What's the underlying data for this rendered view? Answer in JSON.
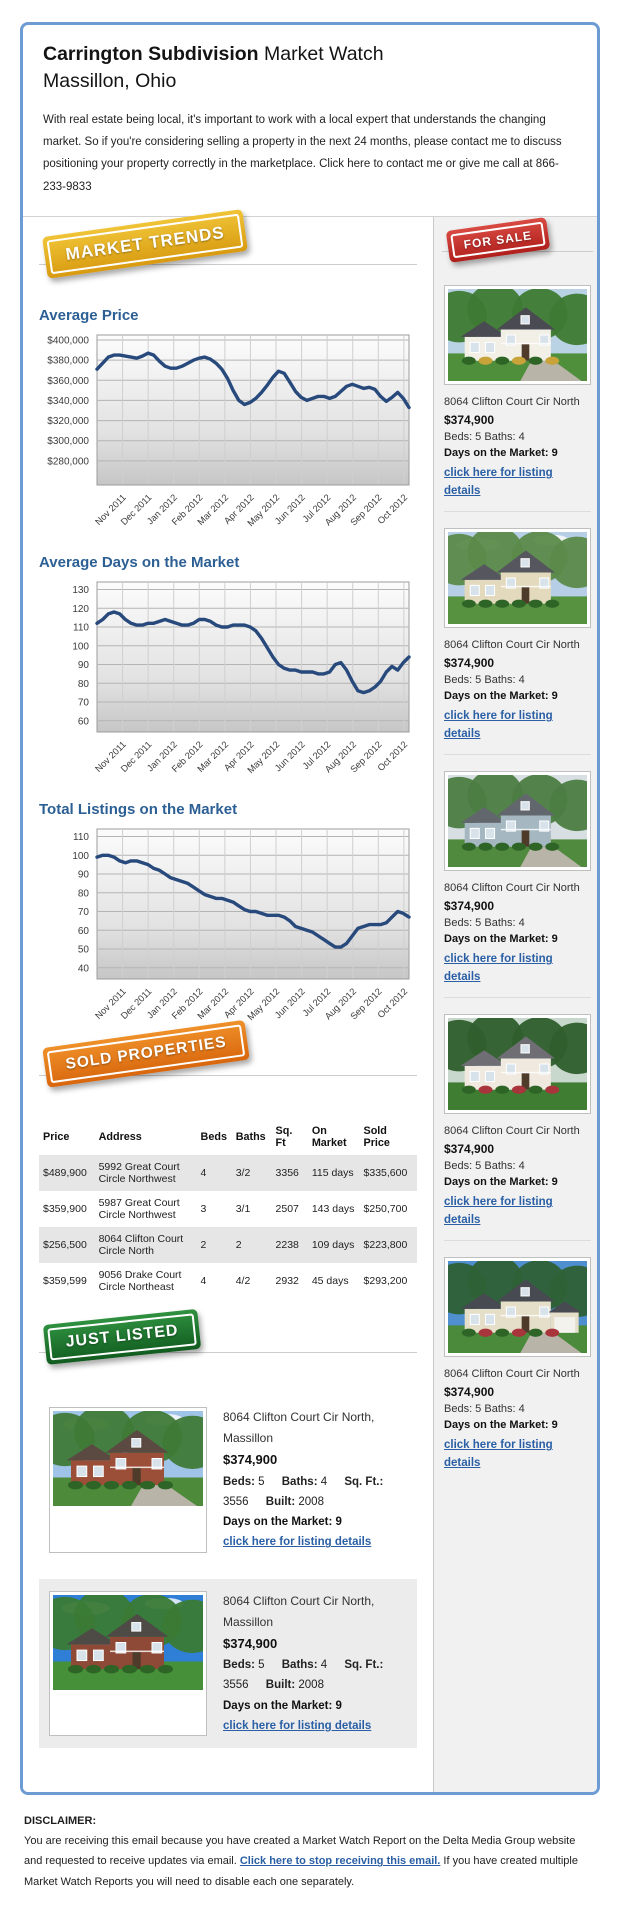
{
  "header": {
    "title_bold": "Carrington Subdivision",
    "title_rest": " Market Watch",
    "subtitle": "Massillon, Ohio",
    "intro": "With real estate being local, it's important to work with a local expert that understands the changing market. So if you're considering selling a property in the next 24 months, please contact me to discuss positioning your property correctly in the marketplace. Click here to contact me or give me call at 866-233-9833"
  },
  "badges": {
    "market_trends": "MARKET TRENDS",
    "for_sale": "FOR SALE",
    "sold_properties": "SOLD PROPERTIES",
    "just_listed": "JUST LISTED"
  },
  "colors": {
    "frame_blue": "#6d9bd3",
    "heading_blue": "#2c5f94",
    "link_blue": "#2a5fa5",
    "chart_line": "#27497b",
    "badge_gold": "#d89a10",
    "badge_red": "#b01f1c",
    "badge_orange": "#d8660d",
    "badge_green": "#115c1f",
    "sidebar_bg": "#f1f1f1",
    "table_alt_row": "#e6e6e6"
  },
  "chart_data": [
    {
      "type": "line",
      "title": "Average Price",
      "x_labels": [
        "Nov 2011",
        "Dec 2011",
        "Jan 2012",
        "Feb 2012",
        "Mar 2012",
        "Apr 2012",
        "May 2012",
        "Jun 2012",
        "Jul 2012",
        "Aug 2012",
        "Sep 2012",
        "Oct 2012"
      ],
      "values": [
        371000,
        377000,
        383000,
        385000,
        385000,
        384000,
        383000,
        382000,
        384000,
        387000,
        385000,
        379000,
        374000,
        372000,
        372000,
        374000,
        377000,
        380000,
        382000,
        383000,
        381000,
        377000,
        371000,
        362000,
        350000,
        340000,
        336000,
        338000,
        342000,
        348000,
        355000,
        363000,
        369000,
        367000,
        358000,
        349000,
        343000,
        340000,
        342000,
        344000,
        344000,
        342000,
        344000,
        349000,
        354000,
        356000,
        354000,
        352000,
        353000,
        351000,
        344000,
        339000,
        343000,
        348000,
        342000,
        333000
      ],
      "ytick_values": [
        400000,
        380000,
        360000,
        340000,
        320000,
        300000,
        280000
      ],
      "ytick_labels": [
        "$400,000",
        "$380,000",
        "$360,000",
        "$340,000",
        "$320,000",
        "$300,000",
        "$280,000"
      ],
      "ylim": [
        256000,
        405000
      ],
      "grid": true,
      "line_color": "#27497b"
    },
    {
      "type": "line",
      "title": "Average Days on the Market",
      "x_labels": [
        "Nov 2011",
        "Dec 2011",
        "Jan 2012",
        "Feb 2012",
        "Mar 2012",
        "Apr 2012",
        "May 2012",
        "Jun 2012",
        "Jul 2012",
        "Aug 2012",
        "Sep 2012",
        "Oct 2012"
      ],
      "values": [
        112,
        114,
        117,
        118,
        117,
        114,
        112,
        111,
        111,
        112,
        112,
        113,
        114,
        113,
        112,
        111,
        111,
        112,
        114,
        114,
        113,
        111,
        110,
        110,
        111,
        111,
        111,
        110,
        108,
        104,
        99,
        94,
        90,
        88,
        87,
        87,
        86,
        86,
        86,
        85,
        85,
        86,
        90,
        91,
        87,
        81,
        76,
        75,
        76,
        78,
        81,
        86,
        89,
        87,
        91,
        94
      ],
      "ytick_values": [
        130,
        120,
        110,
        100,
        90,
        80,
        70,
        60
      ],
      "ytick_labels": [
        "130",
        "120",
        "110",
        "100",
        "90",
        "80",
        "70",
        "60"
      ],
      "ylim": [
        54,
        134
      ],
      "grid": true,
      "line_color": "#27497b"
    },
    {
      "type": "line",
      "title": "Total Listings on the Market",
      "x_labels": [
        "Nov 2011",
        "Dec 2011",
        "Jan 2012",
        "Feb 2012",
        "Mar 2012",
        "Apr 2012",
        "May 2012",
        "Jun 2012",
        "Jul 2012",
        "Aug 2012",
        "Sep 2012",
        "Oct 2012"
      ],
      "values": [
        99,
        100,
        100,
        99,
        97,
        96,
        97,
        97,
        96,
        95,
        93,
        92,
        90,
        88,
        87,
        86,
        85,
        83,
        81,
        79,
        78,
        77,
        77,
        76,
        75,
        73,
        71,
        70,
        70,
        69,
        68,
        68,
        68,
        67,
        65,
        62,
        61,
        60,
        59,
        57,
        55,
        53,
        51,
        51,
        53,
        57,
        61,
        62,
        63,
        63,
        63,
        64,
        67,
        70,
        69,
        67
      ],
      "ytick_values": [
        110,
        100,
        90,
        80,
        70,
        60,
        50,
        40
      ],
      "ytick_labels": [
        "110",
        "100",
        "90",
        "80",
        "70",
        "60",
        "50",
        "40"
      ],
      "ylim": [
        34,
        114
      ],
      "grid": true,
      "line_color": "#27497b"
    }
  ],
  "for_sale": {
    "listings": [
      {
        "address": "8064 Clifton Court Cir North",
        "price": "$374,900",
        "beds_baths": "Beds: 5 Baths: 4",
        "days": "Days on the Market: 9",
        "link": "click here for listing details"
      },
      {
        "address": "8064 Clifton Court Cir North",
        "price": "$374,900",
        "beds_baths": "Beds: 5 Baths: 4",
        "days": "Days on the Market: 9",
        "link": "click here for listing details"
      },
      {
        "address": "8064 Clifton Court Cir North",
        "price": "$374,900",
        "beds_baths": "Beds: 5 Baths: 4",
        "days": "Days on the Market: 9",
        "link": "click here for listing details"
      },
      {
        "address": "8064 Clifton Court Cir North",
        "price": "$374,900",
        "beds_baths": "Beds: 5 Baths: 4",
        "days": "Days on the Market: 9",
        "link": "click here for listing details"
      },
      {
        "address": "8064 Clifton Court Cir North",
        "price": "$374,900",
        "beds_baths": "Beds: 5 Baths: 4",
        "days": "Days on the Market: 9",
        "link": "click here for listing details"
      }
    ]
  },
  "sold": {
    "headers": [
      "Price",
      "Address",
      "Beds",
      "Baths",
      "Sq. Ft",
      "On Market",
      "Sold Price"
    ],
    "rows": [
      [
        "$489,900",
        "5992 Great Court Circle Northwest",
        "4",
        "3/2",
        "3356",
        "115 days",
        "$335,600"
      ],
      [
        "$359,900",
        "5987 Great Court Circle Northwest",
        "3",
        "3/1",
        "2507",
        "143 days",
        "$250,700"
      ],
      [
        "$256,500",
        "8064 Clifton Court Circle North",
        "2",
        "2",
        "2238",
        "109 days",
        "$223,800"
      ],
      [
        "$359,599",
        "9056 Drake Court Circle Northeast",
        "4",
        "4/2",
        "2932",
        "45 days",
        "$293,200"
      ]
    ]
  },
  "just_listed": {
    "items": [
      {
        "address": "8064 Clifton Court Cir North, Massillon",
        "price": "$374,900",
        "specs": [
          {
            "label": "Beds:",
            "value": " 5"
          },
          {
            "label": "Baths:",
            "value": " 4"
          },
          {
            "label": "Sq. Ft.:",
            "value": " 3556"
          },
          {
            "label": "Built:",
            "value": " 2008"
          }
        ],
        "days": "Days on the Market: 9",
        "link": "click here for listing details"
      },
      {
        "address": "8064 Clifton Court Cir North, Massillon",
        "price": "$374,900",
        "specs": [
          {
            "label": "Beds:",
            "value": " 5"
          },
          {
            "label": "Baths:",
            "value": " 4"
          },
          {
            "label": "Sq. Ft.:",
            "value": " 3556"
          },
          {
            "label": "Built:",
            "value": " 2008"
          }
        ],
        "days": "Days on the Market: 9",
        "link": "click here for listing details"
      }
    ]
  },
  "disclaimer": {
    "label": "DISCLAIMER:",
    "text_before": "You are receiving this email because you have created a Market Watch Report on the Delta Media Group website and requested to receive updates via email. ",
    "link": "Click here to stop receiving this email.",
    "text_after": " If you have created multiple Market Watch Reports you will need to disable each one separately."
  },
  "photos": [
    {
      "sky": "#b9d2e4",
      "trees": "#3e7a33",
      "wall": "#f2efe6",
      "roof": "#4a4a52",
      "grass": "#4f8f3c",
      "shrub": "#c7a33a",
      "drive": true,
      "clouds": false,
      "garage": false
    },
    {
      "sky": "#b7cfe6",
      "trees": "#5b8a4a",
      "wall": "#e3d9bd",
      "roof": "#56565e",
      "grass": "#56923f",
      "shrub": "#2e6527",
      "drive": false,
      "clouds": true,
      "garage": false
    },
    {
      "sky": "#d8dfe3",
      "trees": "#4c7d42",
      "wall": "#a5b7c0",
      "roof": "#62666d",
      "grass": "#4f8a3e",
      "shrub": "#2e6527",
      "drive": true,
      "clouds": false,
      "garage": false
    },
    {
      "sky": "#c9d8cc",
      "trees": "#2f5e2c",
      "wall": "#efe9df",
      "roof": "#6e6e74",
      "grass": "#3f7d33",
      "shrub": "#a8343c",
      "drive": false,
      "clouds": false,
      "garage": false
    },
    {
      "sky": "#4f8fd0",
      "trees": "#2e6135",
      "wall": "#e5dec9",
      "roof": "#474a50",
      "grass": "#4c8a3b",
      "shrub": "#a8343c",
      "drive": true,
      "clouds": false,
      "garage": true
    },
    {
      "sky": "#9fc4e8",
      "trees": "#3f7a37",
      "wall": "#9c4f38",
      "roof": "#5a4a42",
      "grass": "#4d8a3a",
      "shrub": "#2e6527",
      "drive": true,
      "clouds": true,
      "garage": false
    },
    {
      "sky": "#2f7fd6",
      "trees": "#3a7a35",
      "wall": "#8e4a36",
      "roof": "#4e4a46",
      "grass": "#459038",
      "shrub": "#2e6527",
      "drive": false,
      "clouds": true,
      "garage": false
    }
  ]
}
